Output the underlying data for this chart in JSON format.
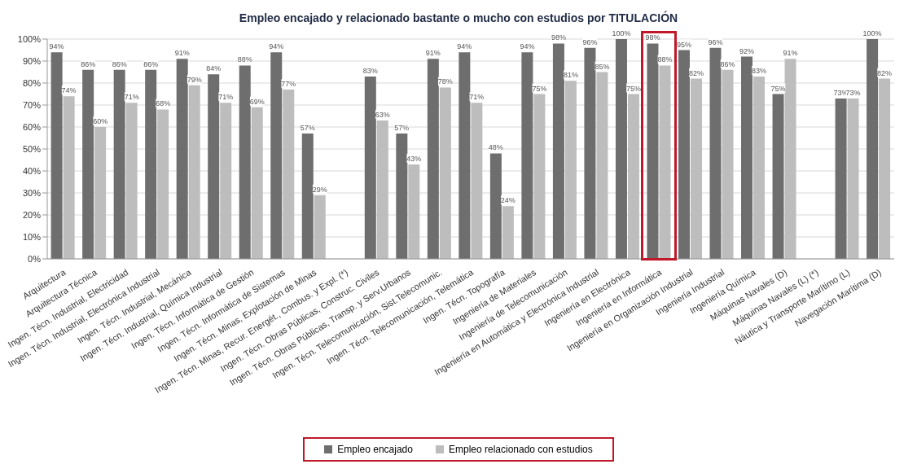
{
  "chart_data": {
    "type": "bar",
    "title": "Empleo encajado y relacionado bastante o mucho con estudios por TITULACIÓN",
    "categories": [
      "Arquitectura",
      "Arquitectura Técnica",
      "Ingen. Técn. Industrial, Electricidad",
      "Ingen. Técn. Industrial, Electrónica Industrial",
      "Ingen. Técn. Industrial, Mecánica",
      "Ingen. Técn. Industrial, Química Industrial",
      "Ingen. Técn. Informática de Gestión",
      "Ingen. Técn. Informática de Sistemas",
      "Ingen. Técn. Minas, Explotación de Minas",
      "Ingen. Técn. Minas, Recur. Energét., Combus. y Expl. (*)",
      "Ingen. Técn. Obras Públicas, Construc. Civiles",
      "Ingen. Técn. Obras Públicas, Transp. y Serv.Urbanos",
      "Ingen. Técn. Telecomunicación, Sist.Telecomunic.",
      "Ingen. Técn. Telecomunicación, Telemática",
      "Ingen. Técn. Topografía",
      "Ingeniería de Materiales",
      "Ingeniería de Telecomunicación",
      "Ingeniería en Automática y Electrónica Industrial",
      "Ingeniería en Electrónica",
      "Ingeniería en Informática",
      "Ingeniería en Organización Industrial",
      "Ingeniería Industrial",
      "Ingeniería Química",
      "Máquinas Navales (D)",
      "Máquinas Navales (L) (*)",
      "Náutica y Transporte Marítimo (L)",
      "Navegación Marítima (D)"
    ],
    "series": [
      {
        "name": "Empleo encajado",
        "color": "#6e6e6e",
        "values": [
          94,
          86,
          86,
          86,
          91,
          84,
          88,
          94,
          57,
          null,
          83,
          57,
          91,
          94,
          48,
          94,
          98,
          96,
          100,
          98,
          95,
          96,
          92,
          75,
          null,
          73,
          100
        ],
        "value_labels": [
          "94%",
          "86%",
          "86%",
          "86%",
          "91%",
          "84%",
          "88%",
          "94%",
          "57%",
          null,
          "83%",
          "57%",
          "91%",
          "94%",
          "48%",
          "94%",
          "98%",
          "96%",
          "100%",
          "98%",
          "95%",
          "96%",
          "92%",
          "75%",
          null,
          "73%",
          "100%"
        ]
      },
      {
        "name": "Empleo relacionado con estudios",
        "color": "#bdbdbd",
        "values": [
          74,
          60,
          71,
          68,
          79,
          71,
          69,
          77,
          29,
          null,
          63,
          43,
          78,
          71,
          24,
          75,
          81,
          85,
          75,
          88,
          82,
          86,
          83,
          91,
          null,
          73,
          82
        ],
        "value_labels": [
          "74%",
          "60%",
          "71%",
          "68%",
          "79%",
          "71%",
          "69%",
          "77%",
          "29%",
          null,
          "63%",
          "43%",
          "78%",
          "71%",
          "24%",
          "75%",
          "81%",
          "85%",
          "75%",
          "88%",
          "82%",
          "86%",
          "83%",
          "91%",
          null,
          "73%",
          "82%"
        ]
      }
    ],
    "ylim": [
      0,
      100
    ],
    "yticks": [
      {
        "value": 0,
        "label": "0%"
      },
      {
        "value": 10,
        "label": "10%"
      },
      {
        "value": 20,
        "label": "20%"
      },
      {
        "value": 30,
        "label": "30%"
      },
      {
        "value": 40,
        "label": "40%"
      },
      {
        "value": 50,
        "label": "50%"
      },
      {
        "value": 60,
        "label": "60%"
      },
      {
        "value": 70,
        "label": "70%"
      },
      {
        "value": 80,
        "label": "80%"
      },
      {
        "value": 90,
        "label": "90%"
      },
      {
        "value": 100,
        "label": "100%"
      }
    ],
    "grid": "y",
    "legend": "bottom"
  }
}
